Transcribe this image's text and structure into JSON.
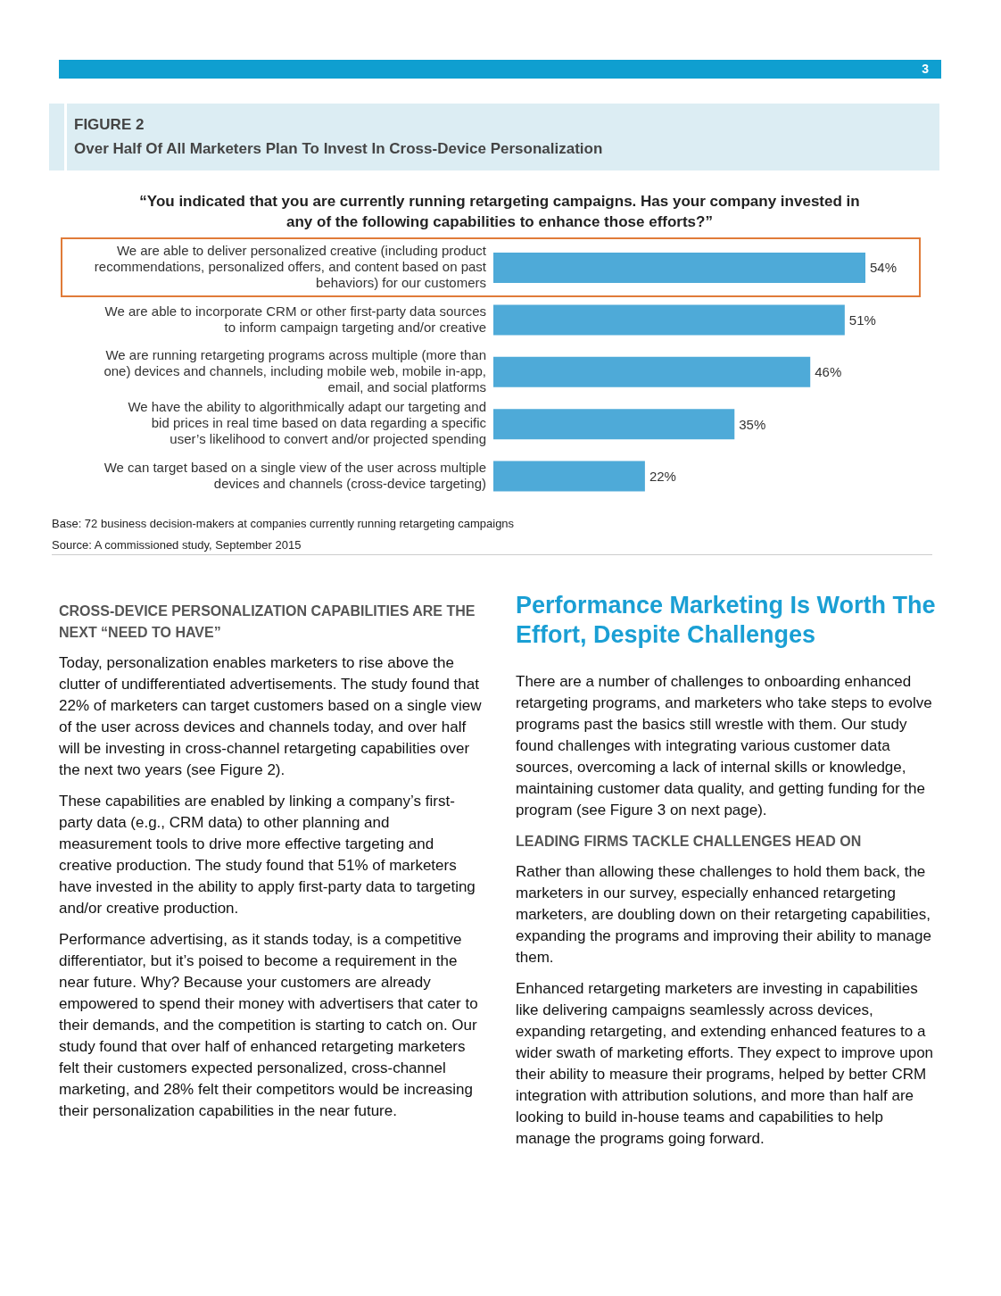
{
  "chart_data": {
    "type": "bar",
    "orientation": "horizontal",
    "title": "Over Half Of All Marketers Plan To Invest In Cross-Device Personalization",
    "subtitle": "“You indicated that you are currently running retargeting campaigns. Has your company invested in any of the following capabilities to enhance those efforts?”",
    "categories": [
      "We are able to deliver personalized creative (including product recommendations, personalized offers, and content based on past behaviors) for our customers",
      "We are able to incorporate CRM or other first-party data sources to inform campaign targeting and/or creative",
      "We are running retargeting programs across multiple (more than one) devices and channels, including mobile web, mobile in-app, email, and social platforms",
      "We have the ability to algorithmically adapt our targeting and bid prices in real time based on data regarding a specific user’s likelihood to convert and/or projected spending",
      "We can target based on a single view of the user across multiple devices and channels (cross-device targeting)"
    ],
    "values": [
      54,
      51,
      46,
      35,
      22
    ],
    "value_labels": [
      "54%",
      "51%",
      "46%",
      "35%",
      "22%"
    ],
    "color": "#4eaad8",
    "annotations": [
      "3",
      "FIGURE 2",
      "Base: 72 business decision-makers at companies currently running retargeting campaigns",
      "Source: A commissioned study, September 2015",
      "CROSS-DEVICE PERSONALIZATION CAPABILITIES ARE THE NEXT “NEED TO HAVE”",
      "Today, personalization enables marketers to rise above the clutter of undifferentiated advertisements. The study found that 22% of marketers can target customers based on a single view of the user across devices and channels today, and over half will be investing in cross-channel retargeting capabilities over the next two years (see Figure 2).",
      "These capabilities are enabled by linking a company’s first-party data (e.g., CRM data) to other planning and measurement tools to drive more effective targeting and creative production. The study found that 51% of marketers have invested in the ability to apply first-party data to targeting and/or creative production.",
      "Performance advertising, as it stands today, is a competitive differentiator, but it’s poised to become a requirement in the near future. Why? Because your customers are already empowered to spend their money with advertisers that cater to their demands, and the competition is starting to catch on. Our study found that over half of enhanced retargeting marketers felt their customers expected personalized, cross-channel marketing, and 28% felt their competitors would be increasing their personalization capabilities in the near future.",
      "Performance Marketing Is Worth The Effort, Despite Challenges",
      "There are a number of challenges to onboarding enhanced retargeting programs, and marketers who take steps to evolve programs past the basics still wrestle with them. Our study found challenges with integrating various customer data sources, overcoming a lack of internal skills or knowledge, maintaining customer data quality, and getting funding for the program (see Figure 3 on next page).",
      "LEADING FIRMS TACKLE CHALLENGES HEAD ON",
      "Rather than allowing these challenges to hold them back, the marketers in our survey, especially enhanced retargeting marketers, are doubling down on their retargeting capabilities, expanding the programs and improving their ability to manage them.",
      "Enhanced retargeting marketers are investing in capabilities like delivering campaigns seamlessly across devices, expanding retargeting, and extending enhanced features to a wider swath of marketing efforts. They expect to improve upon their ability to measure their programs, helped by better CRM integration with attribution solutions, and more than half are looking to build in-house teams and capabilities to help manage the programs going forward."
    ]
  }
}
